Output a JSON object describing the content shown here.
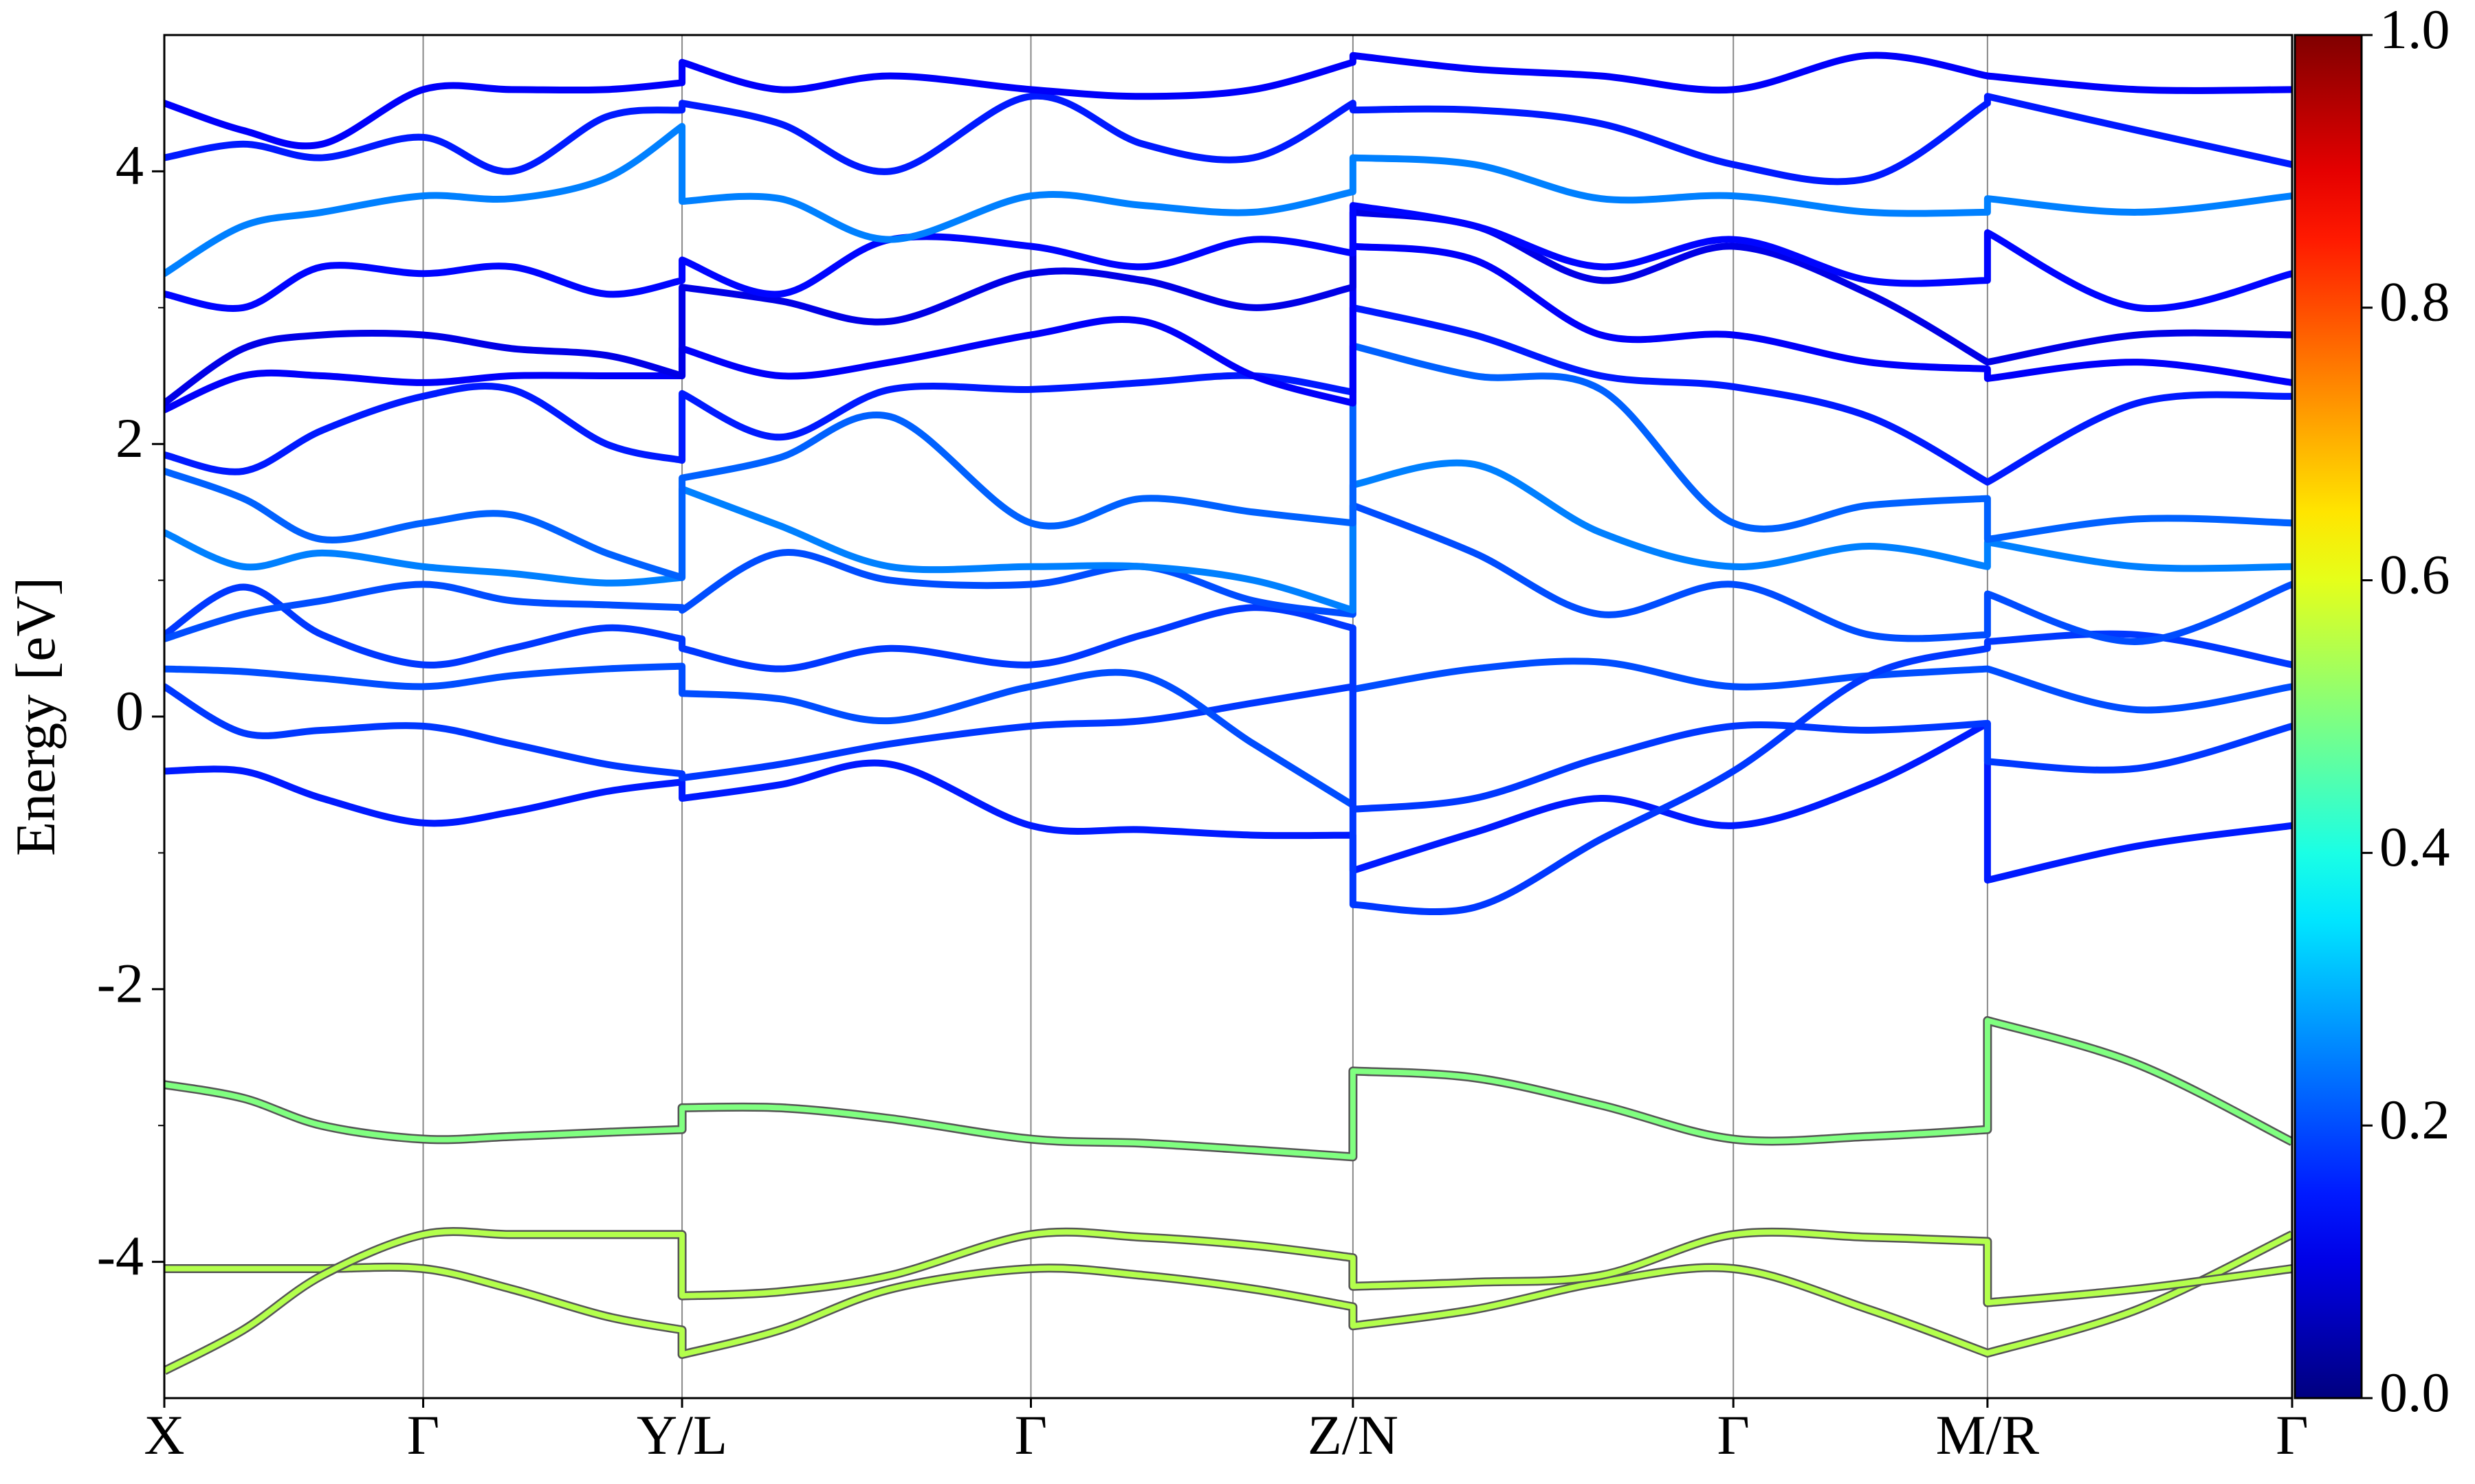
{
  "chart_data": {
    "type": "line",
    "ylabel": "Energy [eV]",
    "x": [
      0,
      0.5,
      1.0,
      1.64,
      2.2,
      2.8,
      3.28,
      3.28,
      3.9,
      4.6,
      5.49,
      6.2,
      6.9,
      7.53,
      7.53,
      8.3,
      9.1,
      9.94,
      10.8,
      11.55,
      11.55,
      12.5,
      13.48
    ],
    "xlim": [
      0,
      13.48
    ],
    "xticks": [
      {
        "value": 0,
        "label": "X"
      },
      {
        "value": 1.64,
        "label": "Γ"
      },
      {
        "value": 3.28,
        "label": "Y/L"
      },
      {
        "value": 5.49,
        "label": "Γ"
      },
      {
        "value": 7.53,
        "label": "Z/N"
      },
      {
        "value": 9.94,
        "label": "Γ"
      },
      {
        "value": 11.55,
        "label": "M/R"
      },
      {
        "value": 13.48,
        "label": "Γ"
      }
    ],
    "ylim": [
      -5,
      5
    ],
    "yticks": [
      -4,
      -2,
      0,
      2,
      4
    ],
    "yminorticks": [
      -3,
      -1,
      1,
      3
    ],
    "vgrid": true,
    "colormap": "jet",
    "clim": [
      0,
      1
    ],
    "cticks": [
      {
        "value": 0,
        "label": "0.0"
      },
      {
        "value": 0.2,
        "label": "0.2"
      },
      {
        "value": 0.4,
        "label": "0.4"
      },
      {
        "value": 0.6,
        "label": "0.6"
      },
      {
        "value": 0.8,
        "label": "0.8"
      },
      {
        "value": 1,
        "label": "1.0"
      }
    ],
    "series": [
      {
        "weight": 0.5,
        "values": [
          -2.7,
          -2.8,
          -3.0,
          -3.1,
          -3.08,
          -3.05,
          -3.03,
          -2.87,
          -2.87,
          -2.95,
          -3.1,
          -3.13,
          -3.18,
          -3.23,
          -2.6,
          -2.65,
          -2.85,
          -3.1,
          -3.08,
          -3.03,
          -2.23,
          -2.55,
          -3.12
        ]
      },
      {
        "weight": 0.55,
        "values": [
          -4.05,
          -4.05,
          -4.05,
          -4.05,
          -4.2,
          -4.4,
          -4.5,
          -4.68,
          -4.5,
          -4.2,
          -4.05,
          -4.1,
          -4.2,
          -4.33,
          -4.47,
          -4.35,
          -4.15,
          -4.05,
          -4.35,
          -4.67,
          -4.67,
          -4.35,
          -3.8
        ]
      },
      {
        "weight": 0.55,
        "values": [
          -4.8,
          -4.5,
          -4.1,
          -3.8,
          -3.8,
          -3.8,
          -3.8,
          -4.25,
          -4.22,
          -4.1,
          -3.8,
          -3.82,
          -3.88,
          -3.97,
          -4.18,
          -4.15,
          -4.1,
          -3.8,
          -3.82,
          -3.85,
          -4.3,
          -4.2,
          -4.05
        ]
      },
      {
        "weight": 0.15,
        "values": [
          -0.4,
          -0.4,
          -0.6,
          -0.78,
          -0.7,
          -0.55,
          -0.48,
          -0.6,
          -0.5,
          -0.35,
          -0.8,
          -0.83,
          -0.87,
          -0.87,
          -1.13,
          -0.85,
          -0.6,
          -0.8,
          -0.5,
          -0.05,
          -1.2,
          -0.95,
          -0.8
        ]
      },
      {
        "weight": 0.18,
        "values": [
          0.22,
          -0.12,
          -0.1,
          -0.07,
          -0.2,
          -0.35,
          -0.42,
          -0.45,
          -0.35,
          -0.2,
          -0.07,
          -0.03,
          0.1,
          0.22,
          -0.68,
          -0.6,
          -0.3,
          -0.07,
          -0.1,
          -0.05,
          -0.33,
          -0.38,
          -0.07
        ]
      },
      {
        "weight": 0.2,
        "values": [
          0.35,
          0.33,
          0.28,
          0.22,
          0.3,
          0.35,
          0.37,
          0.17,
          0.13,
          -0.03,
          0.22,
          0.3,
          -0.2,
          -0.65,
          0.2,
          0.35,
          0.4,
          0.22,
          0.3,
          0.35,
          0.35,
          0.05,
          0.22
        ]
      },
      {
        "weight": 0.18,
        "values": [
          0.6,
          0.95,
          0.6,
          0.38,
          0.5,
          0.65,
          0.57,
          0.5,
          0.35,
          0.5,
          0.38,
          0.6,
          0.8,
          0.65,
          -1.38,
          -1.4,
          -0.9,
          -0.4,
          0.3,
          0.5,
          0.55,
          0.6,
          0.38
        ]
      },
      {
        "weight": 0.2,
        "values": [
          0.57,
          0.75,
          0.85,
          0.97,
          0.85,
          0.82,
          0.8,
          0.78,
          1.2,
          1.0,
          0.97,
          1.1,
          0.85,
          0.75,
          1.55,
          1.2,
          0.75,
          0.97,
          0.6,
          0.6,
          0.9,
          0.55,
          0.97
        ]
      },
      {
        "weight": 0.25,
        "values": [
          1.35,
          1.1,
          1.2,
          1.1,
          1.05,
          0.98,
          1.02,
          1.67,
          1.4,
          1.1,
          1.1,
          1.1,
          1.0,
          0.78,
          1.7,
          1.85,
          1.35,
          1.1,
          1.25,
          1.1,
          1.28,
          1.1,
          1.1
        ]
      },
      {
        "weight": 0.22,
        "values": [
          1.8,
          1.6,
          1.3,
          1.42,
          1.48,
          1.2,
          1.02,
          1.75,
          1.9,
          2.2,
          1.42,
          1.6,
          1.5,
          1.42,
          2.72,
          2.5,
          2.4,
          1.42,
          1.55,
          1.6,
          1.3,
          1.45,
          1.42
        ]
      },
      {
        "weight": 0.15,
        "values": [
          1.92,
          1.8,
          2.1,
          2.35,
          2.4,
          2.0,
          1.88,
          2.37,
          2.05,
          2.4,
          2.4,
          2.45,
          2.5,
          2.38,
          3.0,
          2.8,
          2.5,
          2.42,
          2.2,
          1.72,
          1.72,
          2.3,
          2.35
        ]
      },
      {
        "weight": 0.12,
        "values": [
          2.25,
          2.5,
          2.5,
          2.45,
          2.5,
          2.5,
          2.5,
          2.7,
          2.5,
          2.6,
          2.8,
          2.9,
          2.5,
          2.3,
          3.45,
          3.35,
          2.8,
          2.8,
          2.6,
          2.55,
          2.48,
          2.6,
          2.45
        ]
      },
      {
        "weight": 0.1,
        "values": [
          2.3,
          2.7,
          2.8,
          2.8,
          2.7,
          2.65,
          2.5,
          3.15,
          3.05,
          2.9,
          3.25,
          3.2,
          3.0,
          3.15,
          3.7,
          3.6,
          3.2,
          3.45,
          3.1,
          2.6,
          2.6,
          2.8,
          2.8
        ]
      },
      {
        "weight": 0.13,
        "values": [
          3.1,
          3.0,
          3.3,
          3.25,
          3.3,
          3.1,
          3.2,
          3.35,
          3.1,
          3.5,
          3.45,
          3.3,
          3.5,
          3.4,
          3.75,
          3.6,
          3.3,
          3.5,
          3.2,
          3.2,
          3.55,
          3.0,
          3.25
        ]
      },
      {
        "weight": 0.25,
        "values": [
          3.25,
          3.6,
          3.7,
          3.82,
          3.8,
          3.95,
          4.33,
          3.78,
          3.8,
          3.5,
          3.82,
          3.75,
          3.7,
          3.85,
          4.1,
          4.05,
          3.8,
          3.82,
          3.7,
          3.7,
          3.8,
          3.7,
          3.82
        ]
      },
      {
        "weight": 0.15,
        "values": [
          4.1,
          4.2,
          4.1,
          4.25,
          4.0,
          4.4,
          4.45,
          4.5,
          4.35,
          4.0,
          4.55,
          4.2,
          4.1,
          4.5,
          4.45,
          4.45,
          4.35,
          4.05,
          3.95,
          4.5,
          4.55,
          4.3,
          4.05
        ]
      },
      {
        "weight": 0.12,
        "values": [
          4.5,
          4.3,
          4.2,
          4.6,
          4.6,
          4.6,
          4.65,
          4.8,
          4.6,
          4.7,
          4.6,
          4.55,
          4.6,
          4.8,
          4.85,
          4.75,
          4.7,
          4.6,
          4.85,
          4.7,
          4.7,
          4.6,
          4.6
        ]
      }
    ]
  }
}
